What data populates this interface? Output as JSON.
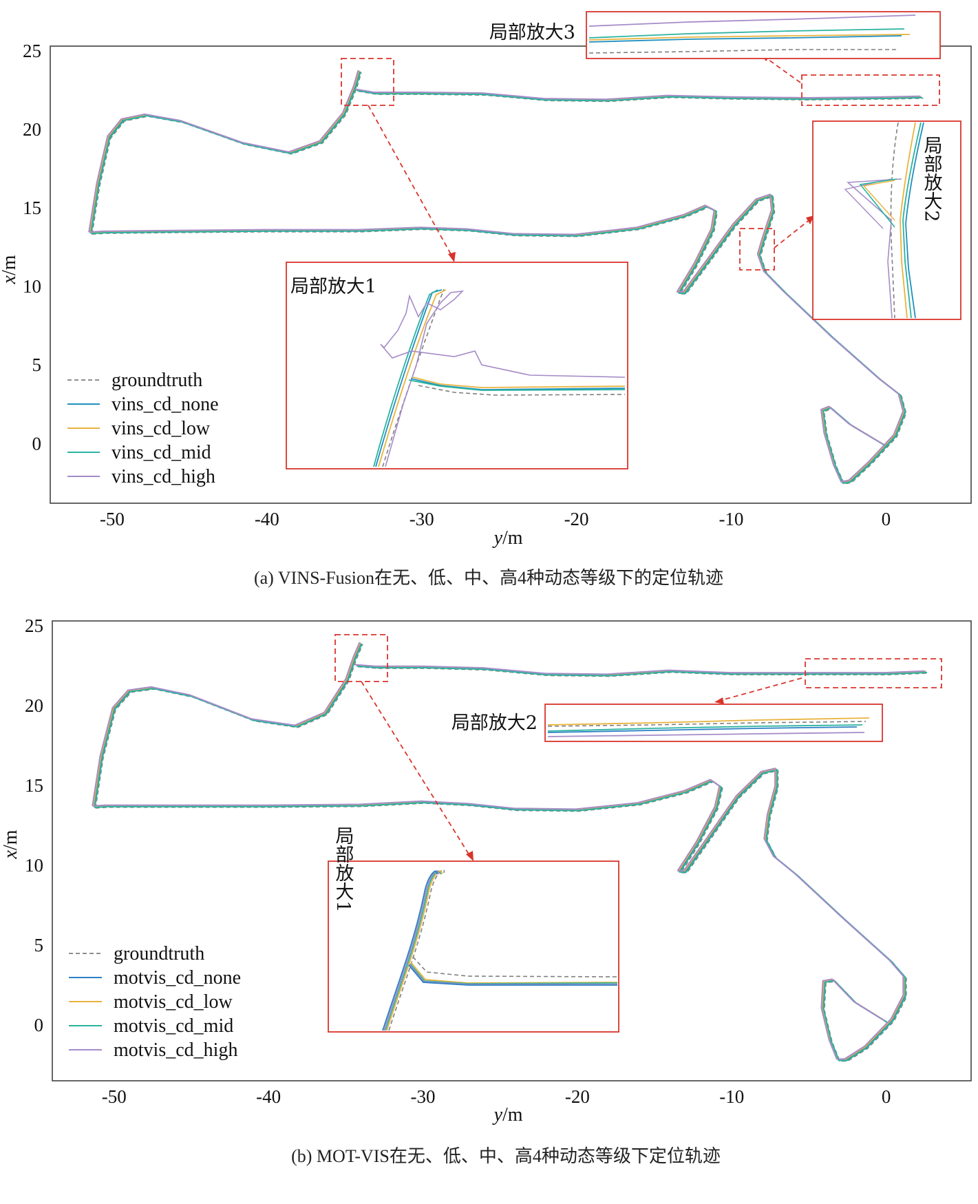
{
  "chart_data": [
    {
      "type": "line",
      "caption": "(a) VINS-Fusion在无、低、中、高4种动态等级下的定位轨迹",
      "xlabel_italic": "y",
      "xlabel_unit": "/m",
      "ylabel_italic": "x",
      "ylabel_unit": "/m",
      "xlim": [
        -54,
        5.5
      ],
      "ylim": [
        -3.8,
        25.3
      ],
      "xticks": [
        -50,
        -40,
        -30,
        -20,
        -10,
        0
      ],
      "yticks": [
        0,
        5,
        10,
        15,
        20,
        25
      ],
      "grid": false,
      "legend_position": "bottom-left",
      "series": [
        {
          "name": "groundtruth",
          "color": "#7f7f7f",
          "dashed": true
        },
        {
          "name": "vins_cd_none",
          "color": "#1f8fbf"
        },
        {
          "name": "vins_cd_low",
          "color": "#e8b33c"
        },
        {
          "name": "vins_cd_mid",
          "color": "#2ab3a0"
        },
        {
          "name": "vins_cd_high",
          "color": "#a58bc9"
        }
      ],
      "zoom_labels": [
        "局部放大1",
        "局部放大2",
        "局部放大3"
      ]
    },
    {
      "type": "line",
      "caption": "(b) MOT-VIS在无、低、中、高4种动态等级下定位轨迹",
      "xlabel_italic": "y",
      "xlabel_unit": "/m",
      "ylabel_italic": "x",
      "ylabel_unit": "/m",
      "xlim": [
        -54,
        5.5
      ],
      "ylim": [
        -3.5,
        25.3
      ],
      "xticks": [
        -50,
        -40,
        -30,
        -20,
        -10,
        0
      ],
      "yticks": [
        0,
        5,
        10,
        15,
        20,
        25
      ],
      "grid": false,
      "legend_position": "bottom-left",
      "series": [
        {
          "name": "groundtruth",
          "color": "#7f7f7f",
          "dashed": true
        },
        {
          "name": "motvis_cd_none",
          "color": "#2c7fc4"
        },
        {
          "name": "motvis_cd_low",
          "color": "#e8b33c"
        },
        {
          "name": "motvis_cd_mid",
          "color": "#2ab3a0"
        },
        {
          "name": "motvis_cd_high",
          "color": "#a58bc9"
        }
      ],
      "zoom_labels": [
        "局部放大1",
        "局部放大2"
      ]
    }
  ],
  "track": [
    [
      -51.4,
      13.4
    ],
    [
      -50.5,
      13.45
    ],
    [
      -46,
      13.5
    ],
    [
      -40,
      13.55
    ],
    [
      -34,
      13.55
    ],
    [
      -30,
      13.7
    ],
    [
      -27,
      13.6
    ],
    [
      -24,
      13.3
    ],
    [
      -20,
      13.25
    ],
    [
      -16,
      13.7
    ],
    [
      -13,
      14.5
    ],
    [
      -11.6,
      15.1
    ],
    [
      -11.0,
      14.8
    ],
    [
      -11.2,
      13.6
    ],
    [
      -12.3,
      11.4
    ],
    [
      -13.4,
      9.6
    ],
    [
      -13.0,
      9.6
    ],
    [
      -11.5,
      11.6
    ],
    [
      -9.8,
      13.9
    ],
    [
      -8.3,
      15.5
    ],
    [
      -7.4,
      15.8
    ],
    [
      -7.3,
      14.8
    ],
    [
      -7.9,
      13.0
    ],
    [
      -8.2,
      12.0
    ],
    [
      -7.8,
      10.9
    ],
    [
      -6.5,
      9.6
    ],
    [
      -3.5,
      6.8
    ],
    [
      -0.4,
      4.1
    ],
    [
      0.9,
      3.1
    ],
    [
      1.2,
      2.0
    ],
    [
      0.6,
      0.5
    ],
    [
      -1.0,
      -1.2
    ],
    [
      -2.3,
      -2.4
    ],
    [
      -2.8,
      -2.5
    ],
    [
      -3.3,
      -1.4
    ],
    [
      -3.9,
      0.6
    ],
    [
      -4.1,
      2.1
    ],
    [
      -3.6,
      2.3
    ],
    [
      -2.3,
      1.2
    ],
    [
      -0.1,
      -0.1
    ]
  ],
  "track2": [
    [
      -51.4,
      13.4
    ],
    [
      -50.9,
      16.5
    ],
    [
      -50.2,
      19.5
    ],
    [
      -49.3,
      20.6
    ],
    [
      -47.8,
      20.9
    ],
    [
      -45.5,
      20.5
    ],
    [
      -41.5,
      19.1
    ],
    [
      -38.5,
      18.5
    ],
    [
      -36.5,
      19.2
    ],
    [
      -35.0,
      21.0
    ],
    [
      -34.3,
      22.7
    ],
    [
      -34.0,
      23.7
    ]
  ],
  "track3": [
    [
      -34.2,
      22.5
    ],
    [
      -33.0,
      22.3
    ],
    [
      -30,
      22.3
    ],
    [
      -26,
      22.25
    ],
    [
      -22,
      21.9
    ],
    [
      -18,
      21.85
    ],
    [
      -14,
      22.1
    ],
    [
      -10,
      22.0
    ],
    [
      -5,
      21.95
    ],
    [
      0,
      22.0
    ],
    [
      2.3,
      22.05
    ]
  ],
  "track_b1": [
    [
      -51.3,
      13.65
    ],
    [
      -50.5,
      13.7
    ],
    [
      -46,
      13.7
    ],
    [
      -40,
      13.7
    ],
    [
      -34,
      13.75
    ],
    [
      -30,
      13.95
    ],
    [
      -27,
      13.8
    ],
    [
      -24,
      13.5
    ],
    [
      -20,
      13.45
    ],
    [
      -16,
      13.85
    ],
    [
      -13,
      14.6
    ],
    [
      -11.3,
      15.3
    ],
    [
      -10.7,
      14.9
    ],
    [
      -11.0,
      13.6
    ],
    [
      -12.2,
      11.4
    ],
    [
      -13.4,
      9.6
    ],
    [
      -13.0,
      9.6
    ],
    [
      -11.4,
      11.8
    ],
    [
      -9.6,
      14.3
    ],
    [
      -8.0,
      15.8
    ],
    [
      -7.1,
      16.0
    ],
    [
      -7.1,
      14.9
    ],
    [
      -7.6,
      13.1
    ],
    [
      -7.8,
      11.6
    ],
    [
      -7.2,
      10.5
    ],
    [
      -5.8,
      9.4
    ],
    [
      -2.8,
      6.7
    ],
    [
      0.3,
      4.0
    ],
    [
      1.2,
      3.0
    ],
    [
      1.2,
      1.8
    ],
    [
      0.4,
      0.3
    ],
    [
      -1.3,
      -1.4
    ],
    [
      -2.6,
      -2.2
    ],
    [
      -3.1,
      -2.2
    ],
    [
      -3.6,
      -1.0
    ],
    [
      -4.1,
      1.0
    ],
    [
      -4.0,
      2.7
    ],
    [
      -3.4,
      2.8
    ],
    [
      -2.0,
      1.4
    ],
    [
      0.0,
      0.2
    ]
  ],
  "track_b2": [
    [
      -51.3,
      13.65
    ],
    [
      -50.8,
      16.8
    ],
    [
      -50.0,
      19.8
    ],
    [
      -49.0,
      20.9
    ],
    [
      -47.5,
      21.1
    ],
    [
      -45.0,
      20.6
    ],
    [
      -41,
      19.1
    ],
    [
      -38.2,
      18.7
    ],
    [
      -36.3,
      19.5
    ],
    [
      -34.9,
      21.6
    ],
    [
      -34.4,
      23.0
    ],
    [
      -34.0,
      23.9
    ]
  ],
  "track_b3": [
    [
      -34.3,
      22.5
    ],
    [
      -33,
      22.4
    ],
    [
      -30,
      22.4
    ],
    [
      -26,
      22.3
    ],
    [
      -22,
      21.95
    ],
    [
      -18,
      21.9
    ],
    [
      -14,
      22.15
    ],
    [
      -10,
      22.0
    ],
    [
      -5,
      22.0
    ],
    [
      0,
      22.0
    ],
    [
      2.6,
      22.1
    ]
  ]
}
